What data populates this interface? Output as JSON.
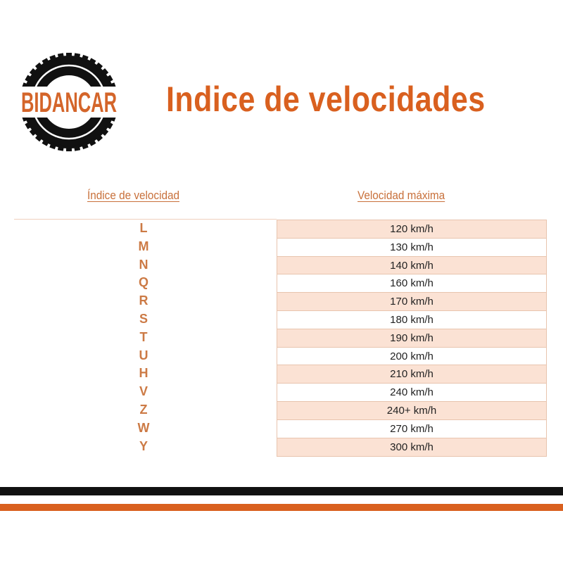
{
  "logo": {
    "text": "BIDANCAR",
    "icon": "tire-icon"
  },
  "title": "Indice de velocidades",
  "table": {
    "headers": [
      "Índice de velocidad",
      "Velocidad máxima"
    ],
    "rows": [
      {
        "index": "L",
        "speed": "120 km/h"
      },
      {
        "index": "M",
        "speed": "130 km/h"
      },
      {
        "index": "N",
        "speed": "140 km/h"
      },
      {
        "index": "Q",
        "speed": "160 km/h"
      },
      {
        "index": "R",
        "speed": "170 km/h"
      },
      {
        "index": "S",
        "speed": "180 km/h"
      },
      {
        "index": "T",
        "speed": "190 km/h"
      },
      {
        "index": "U",
        "speed": "200 km/h"
      },
      {
        "index": "H",
        "speed": "210 km/h"
      },
      {
        "index": "V",
        "speed": "240 km/h"
      },
      {
        "index": "Z",
        "speed": "240+ km/h"
      },
      {
        "index": "W",
        "speed": "270 km/h"
      },
      {
        "index": "Y",
        "speed": "300 km/h"
      }
    ]
  },
  "colors": {
    "accent": "#d9601f",
    "row_shade": "#fbe2d4",
    "stripe_dark": "#111111"
  }
}
